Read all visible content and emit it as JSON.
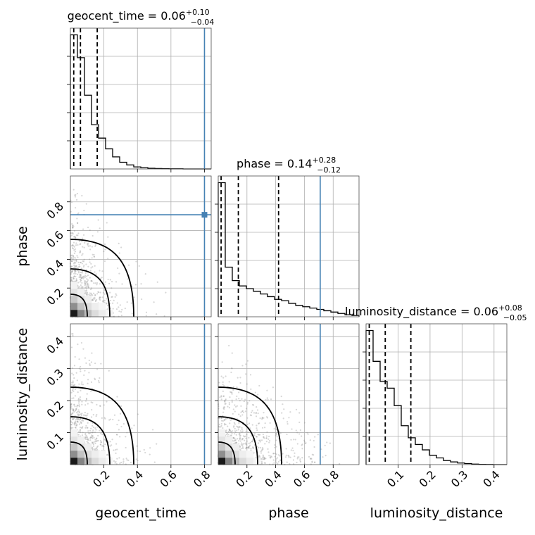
{
  "chart_data": {
    "type": "corner",
    "parameters": [
      "geocent_time",
      "phase",
      "luminosity_distance"
    ],
    "truths": {
      "geocent_time": 0.8,
      "phase": 0.71,
      "luminosity_distance": null
    },
    "ranges": {
      "geocent_time": [
        0.0,
        0.84
      ],
      "phase": [
        0.0,
        0.98
      ],
      "luminosity_distance": [
        0.0,
        0.44
      ]
    },
    "titles": [
      {
        "param": "geocent_time",
        "prefix": "geocent_time = 0.06",
        "plus": "+0.10",
        "minus": "−0.04"
      },
      {
        "param": "phase",
        "prefix": "phase = 0.14",
        "plus": "+0.28",
        "minus": "−0.12"
      },
      {
        "param": "luminosity_distance",
        "prefix": "luminosity_distance = 0.06",
        "plus": "+0.08",
        "minus": "−0.05"
      }
    ],
    "quantiles": {
      "geocent_time": [
        0.02,
        0.06,
        0.16
      ],
      "phase": [
        0.02,
        0.14,
        0.42
      ],
      "luminosity_distance": [
        0.01,
        0.06,
        0.14
      ]
    },
    "histograms": {
      "geocent_time": {
        "edges": [
          0.0,
          0.042,
          0.084,
          0.126,
          0.168,
          0.21,
          0.252,
          0.294,
          0.336,
          0.378,
          0.42,
          0.462,
          0.504,
          0.546,
          0.588,
          0.63,
          0.672,
          0.714,
          0.756,
          0.798,
          0.84
        ],
        "counts": [
          1.0,
          0.83,
          0.55,
          0.33,
          0.23,
          0.15,
          0.09,
          0.05,
          0.03,
          0.015,
          0.01,
          0.005,
          0.003,
          0.002,
          0.001,
          0.001,
          0,
          0,
          0,
          0
        ]
      },
      "phase": {
        "edges": [
          0.0,
          0.049,
          0.098,
          0.147,
          0.196,
          0.245,
          0.294,
          0.343,
          0.392,
          0.441,
          0.49,
          0.539,
          0.588,
          0.637,
          0.686,
          0.735,
          0.784,
          0.833,
          0.882,
          0.931,
          0.98
        ],
        "counts": [
          1.0,
          0.37,
          0.27,
          0.23,
          0.21,
          0.19,
          0.17,
          0.15,
          0.13,
          0.12,
          0.1,
          0.085,
          0.075,
          0.065,
          0.055,
          0.045,
          0.035,
          0.025,
          0.015,
          0.01
        ]
      },
      "luminosity_distance": {
        "edges": [
          0.0,
          0.022,
          0.044,
          0.066,
          0.088,
          0.11,
          0.132,
          0.154,
          0.176,
          0.198,
          0.22,
          0.242,
          0.264,
          0.286,
          0.308,
          0.33,
          0.352,
          0.374,
          0.396,
          0.418,
          0.44
        ],
        "counts": [
          1.0,
          0.77,
          0.62,
          0.57,
          0.44,
          0.29,
          0.2,
          0.15,
          0.11,
          0.07,
          0.05,
          0.03,
          0.02,
          0.012,
          0.008,
          0.004,
          0.002,
          0.001,
          0,
          0
        ]
      }
    },
    "xticks": {
      "geocent_time": [
        0.2,
        0.4,
        0.6,
        0.8
      ],
      "phase": [
        0.2,
        0.4,
        0.6,
        0.8
      ],
      "luminosity_distance": [
        0.1,
        0.2,
        0.3,
        0.4
      ]
    },
    "yticks": {
      "phase": [
        0.2,
        0.4,
        0.6,
        0.8
      ],
      "luminosity_distance": [
        0.1,
        0.2,
        0.3,
        0.4
      ]
    },
    "xlabels": [
      "geocent_time",
      "phase",
      "luminosity_distance"
    ],
    "ylabels": [
      "phase",
      "luminosity_distance"
    ],
    "grid": true,
    "colors": {
      "truth": "#4682b4",
      "samples": "#000000"
    }
  }
}
